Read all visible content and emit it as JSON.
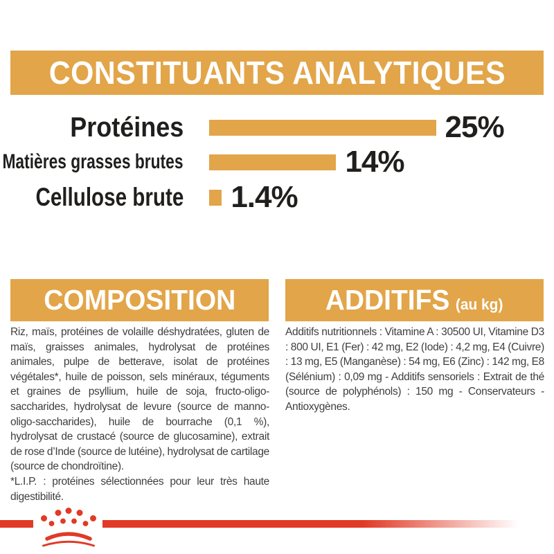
{
  "header": {
    "title": "CONSTITUANTS ANALYTIQUES"
  },
  "chart_data": {
    "type": "bar",
    "orientation": "horizontal",
    "title": "CONSTITUANTS ANALYTIQUES",
    "categories": [
      "Protéines",
      "Matières grasses brutes",
      "Cellulose brute"
    ],
    "values": [
      25,
      14,
      1.4
    ],
    "value_labels": [
      "25%",
      "14%",
      "1.4%"
    ],
    "unit": "percent",
    "bar_color": "#E2A549",
    "xlim": [
      0,
      28
    ],
    "grid": false,
    "legend": false
  },
  "composition": {
    "title": "COMPOSITION",
    "body": "Riz, maïs, protéines de volaille déshydratées, gluten de maïs, graisses animales, hydrolysat de protéines animales, pulpe de betterave, isolat de protéines végétales*, huile de poisson, sels minéraux, téguments et graines de psyllium, huile de soja, fructo-oligo-saccharides, hydrolysat de levure (source de manno-oligo-saccharides), huile de bourrache (0,1 %), hydrolysat de crustacé (source de glucosamine), extrait de rose d’Inde (source de lutéine), hydrolysat de cartilage (source de chondroïtine).",
    "footnote": "*L.I.P. : protéines sélectionnées pour leur très haute digestibilité."
  },
  "additives": {
    "title": "ADDITIFS",
    "title_suffix": "(au kg)",
    "body": "Additifs nutritionnels : Vitamine A : 30500 UI, Vitamine D3 : 800 UI, E1 (Fer) : 42 mg, E2 (Iode) : 4,2 mg, E4 (Cuivre) : 13 mg, E5 (Manganèse) : 54 mg, E6 (Zinc) : 142 mg, E8 (Sélénium) : 0,09 mg - Additifs sensoriels : Extrait de thé (source de polyphénols) : 150 mg - Conservateurs - Antioxygènes."
  },
  "footer": {
    "brand_logo": "royal-canin-crown-icon"
  },
  "colors": {
    "accent_orange": "#E2A549",
    "brand_red": "#E13A26",
    "body_text": "#3E3E3D",
    "heading_text": "#FFFFFF",
    "chart_label": "#201F1D"
  }
}
